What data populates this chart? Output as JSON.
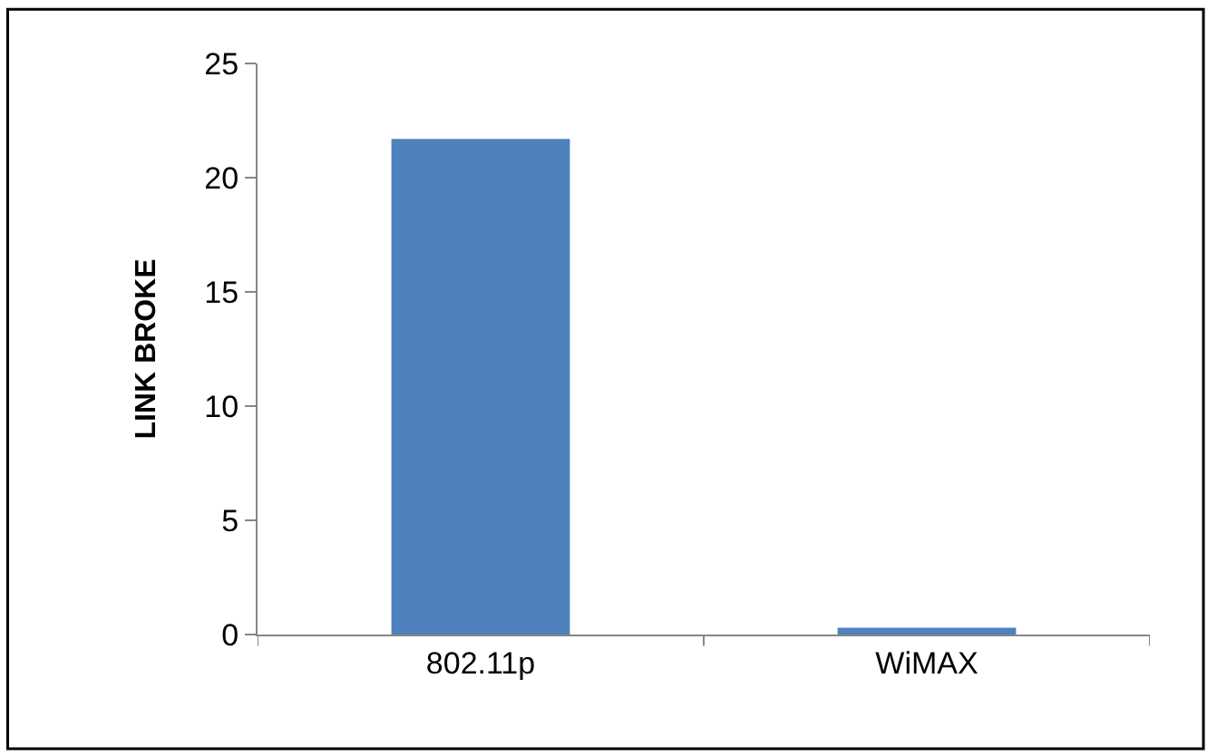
{
  "chart_data": {
    "type": "bar",
    "ylabel": "LINK BROKE",
    "categories": [
      "802.11p",
      "WiMAX"
    ],
    "values": [
      21.7,
      0.3
    ],
    "color": "#4f81bd",
    "ylim": [
      0,
      25
    ],
    "yticks": [
      0,
      5,
      10,
      15,
      20,
      25
    ]
  }
}
